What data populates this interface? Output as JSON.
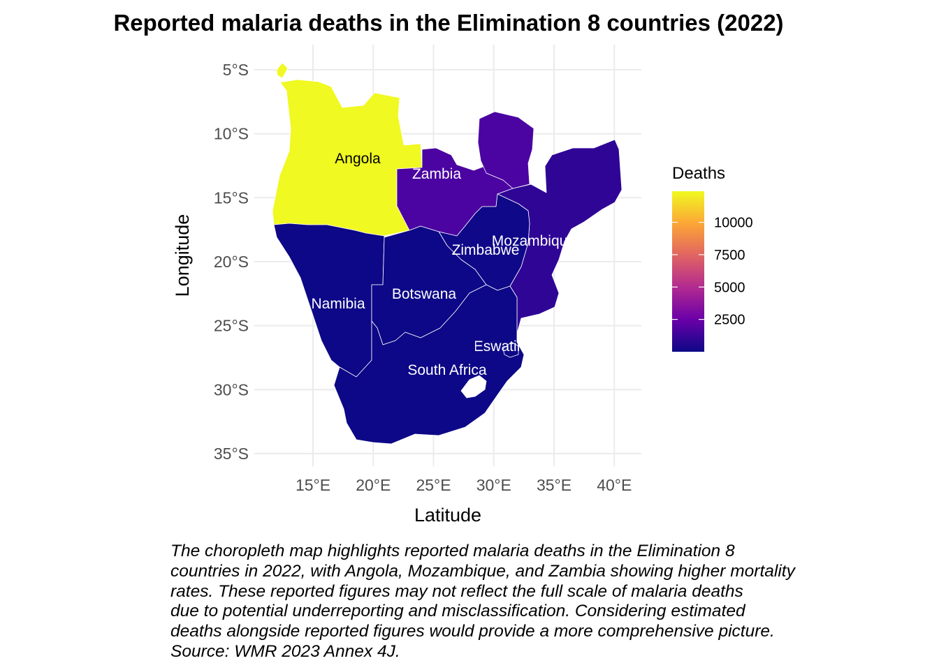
{
  "title": "Reported malaria deaths in the Elimination 8 countries (2022)",
  "x_axis": {
    "title": "Latitude",
    "ticks": [
      {
        "value": 15,
        "label": "15°E"
      },
      {
        "value": 20,
        "label": "20°E"
      },
      {
        "value": 25,
        "label": "25°E"
      },
      {
        "value": 30,
        "label": "30°E"
      },
      {
        "value": 35,
        "label": "35°E"
      },
      {
        "value": 40,
        "label": "40°E"
      }
    ]
  },
  "y_axis": {
    "title": "Longitude",
    "ticks": [
      {
        "value": -5,
        "label": "5°S"
      },
      {
        "value": -10,
        "label": "10°S"
      },
      {
        "value": -15,
        "label": "15°S"
      },
      {
        "value": -20,
        "label": "20°S"
      },
      {
        "value": -25,
        "label": "25°S"
      },
      {
        "value": -30,
        "label": "30°S"
      },
      {
        "value": -35,
        "label": "35°S"
      }
    ]
  },
  "legend": {
    "title": "Deaths",
    "scale": "plasma",
    "colors": [
      "#0d0887",
      "#6a00a8",
      "#b12a90",
      "#e16462",
      "#fca636",
      "#f0f921"
    ],
    "breaks": [
      {
        "value": 2500,
        "label": "2500"
      },
      {
        "value": 5000,
        "label": "5000"
      },
      {
        "value": 7500,
        "label": "7500"
      },
      {
        "value": 10000,
        "label": "10000"
      }
    ]
  },
  "countries": [
    {
      "name": "Angola",
      "label": "Angola",
      "color": "#f0f921",
      "label_color": "#000000"
    },
    {
      "name": "Zambia",
      "label": "Zambia",
      "color": "#4b03a1",
      "label_color": "#ffffff"
    },
    {
      "name": "Mozambique",
      "label": "Mozambique",
      "color": "#2f0596",
      "label_color": "#ffffff"
    },
    {
      "name": "Zimbabwe",
      "label": "Zimbabwe",
      "color": "#0f0888",
      "label_color": "#ffffff"
    },
    {
      "name": "Namibia",
      "label": "Namibia",
      "color": "#0d0887",
      "label_color": "#ffffff"
    },
    {
      "name": "Botswana",
      "label": "Botswana",
      "color": "#0d0887",
      "label_color": "#ffffff"
    },
    {
      "name": "South Africa",
      "label": "South Africa",
      "color": "#0d0887",
      "label_color": "#ffffff"
    },
    {
      "name": "Eswatini",
      "label": "Eswatini",
      "color": "#0d0887",
      "label_color": "#ffffff"
    }
  ],
  "lesotho_color": "#ffffff",
  "caption": "The choropleth map highlights reported malaria deaths in the Elimination 8\ncountries in 2022, with Angola, Mozambique, and Zambia showing higher mortality\nrates. These reported figures may not reflect the full scale of malaria deaths\ndue to potential underreporting and misclassification. Considering estimated\ndeaths alongside reported figures would provide a more comprehensive picture.\nSource: WMR 2023 Annex 4J."
}
